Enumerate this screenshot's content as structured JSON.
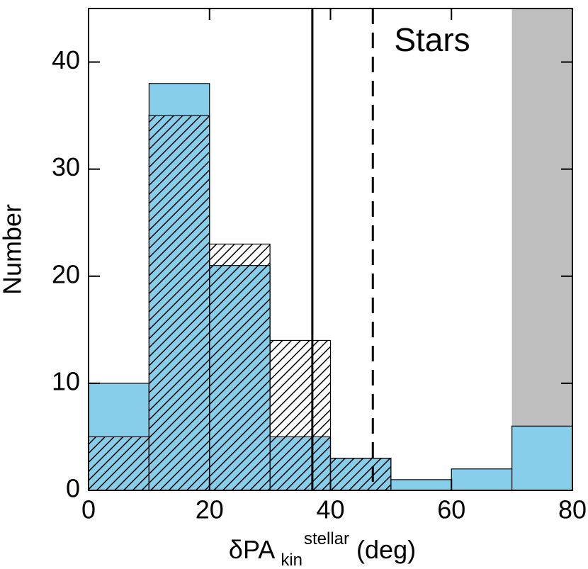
{
  "chart_data": {
    "type": "histogram",
    "bins": [
      0,
      10,
      20,
      30,
      40,
      50,
      60,
      70,
      80
    ],
    "series": [
      {
        "color": "#87ceeb",
        "values": [
          10,
          38,
          21,
          5,
          3,
          1,
          2,
          6
        ]
      },
      {
        "hatch": true,
        "values": [
          5,
          35,
          23,
          14,
          3,
          0,
          0,
          0
        ]
      }
    ],
    "xlim": [
      0,
      80
    ],
    "ylim": [
      0,
      45
    ],
    "xticks": [
      0,
      20,
      40,
      60,
      80
    ],
    "yticks": [
      0,
      10,
      20,
      30,
      40
    ],
    "ylabel": "Number",
    "xlabel": {
      "main": "δPA",
      "sub": "kin",
      "sup": "stellar",
      "unit": "(deg)"
    },
    "annotation": "Stars",
    "shaded": {
      "range": [
        70,
        80
      ],
      "color": "#bebebe"
    },
    "vlines": [
      {
        "x": 37,
        "style": "solid"
      },
      {
        "x": 47,
        "style": "dashed"
      }
    ]
  }
}
